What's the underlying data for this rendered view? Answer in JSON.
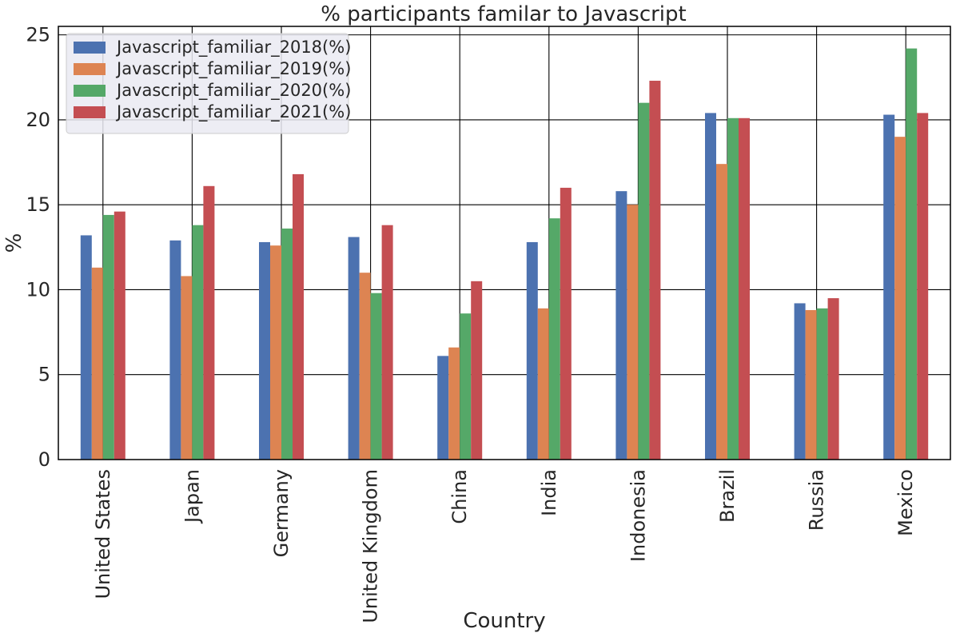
{
  "chart_data": {
    "type": "bar",
    "title": "% participants familar to Javascript",
    "xlabel": "Country",
    "ylabel": "%",
    "ylim": [
      0,
      25.5
    ],
    "yticks": [
      0,
      5,
      10,
      15,
      20,
      25
    ],
    "grid": true,
    "legend_position": "top-left",
    "categories": [
      "United States",
      "Japan",
      "Germany",
      "United Kingdom",
      "China",
      "India",
      "Indonesia",
      "Brazil",
      "Russia",
      "Mexico"
    ],
    "series": [
      {
        "name": "Javascript_familiar_2018(%)",
        "color": "#4c72b0",
        "values": [
          13.2,
          12.9,
          12.8,
          13.1,
          6.1,
          12.8,
          15.8,
          20.4,
          9.2,
          20.3
        ]
      },
      {
        "name": "Javascript_familiar_2019(%)",
        "color": "#dd8452",
        "values": [
          11.3,
          10.8,
          12.6,
          11.0,
          6.6,
          8.9,
          15.0,
          17.4,
          8.8,
          19.0
        ]
      },
      {
        "name": "Javascript_familiar_2020(%)",
        "color": "#55a868",
        "values": [
          14.4,
          13.8,
          13.6,
          9.8,
          8.6,
          14.2,
          21.0,
          20.1,
          8.9,
          24.2
        ]
      },
      {
        "name": "Javascript_familiar_2021(%)",
        "color": "#c44e52",
        "values": [
          14.6,
          16.1,
          16.8,
          13.8,
          10.5,
          16.0,
          22.3,
          20.1,
          9.5,
          20.4
        ]
      }
    ]
  }
}
